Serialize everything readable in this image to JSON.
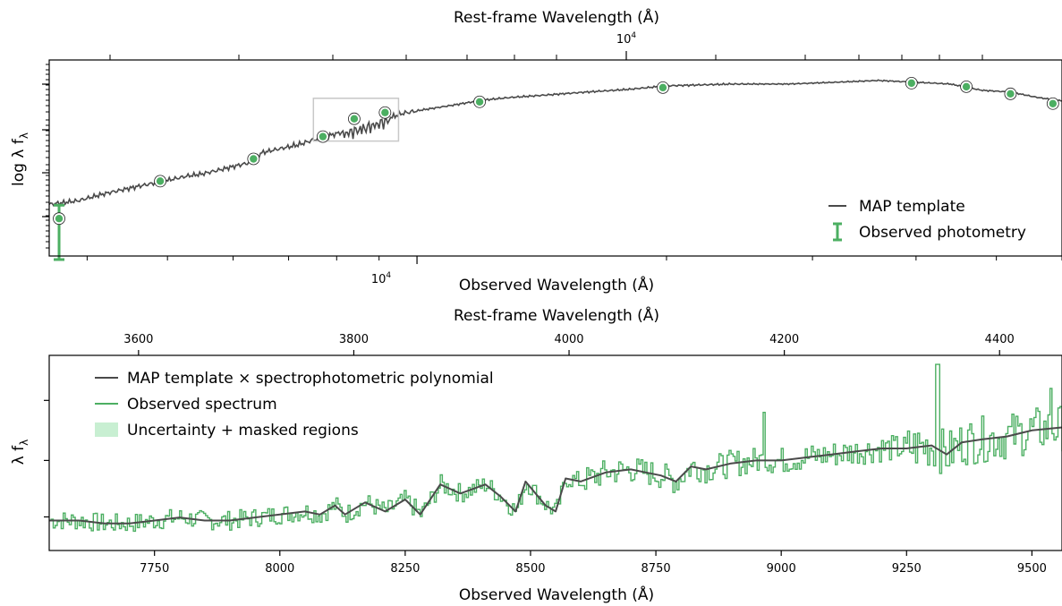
{
  "colors": {
    "template": "#4a4a4a",
    "observed": "#4caf62",
    "uncertainty_fill": "#c8efd2",
    "marker_fill": "#4caf62",
    "inset_box": "#c8c8c8"
  },
  "chart_data": [
    {
      "type": "line",
      "panel": "top",
      "xlabel": "Observed Wavelength (Å)",
      "ylabel": "log  λ f",
      "ylabel_subscript": "λ",
      "top_xlabel": "Rest-frame Wavelength (Å)",
      "x_tick_label": "10",
      "x_tick_exp": "4",
      "top_tick_label": "10",
      "top_tick_exp": "4",
      "xscale": "log",
      "yscale": "log",
      "xlim": [
        3600,
        60000
      ],
      "ylim_logf": [
        -1.3,
        0.9
      ],
      "series": [
        {
          "name": "MAP template",
          "points": [
            [
              3600,
              -0.72
            ],
            [
              3900,
              -0.68
            ],
            [
              4200,
              -0.6
            ],
            [
              4600,
              -0.52
            ],
            [
              5000,
              -0.45
            ],
            [
              5300,
              -0.4
            ],
            [
              5500,
              -0.38
            ],
            [
              5800,
              -0.33
            ],
            [
              6100,
              -0.28
            ],
            [
              6300,
              -0.25
            ],
            [
              6500,
              -0.14
            ],
            [
              6800,
              -0.1
            ],
            [
              7200,
              -0.05
            ],
            [
              7600,
              0.02
            ],
            [
              7900,
              0.06
            ],
            [
              8200,
              0.1
            ],
            [
              8500,
              0.14
            ],
            [
              8800,
              0.18
            ],
            [
              9200,
              0.24
            ],
            [
              9600,
              0.3
            ],
            [
              10000,
              0.33
            ],
            [
              11000,
              0.39
            ],
            [
              12000,
              0.45
            ],
            [
              13000,
              0.48
            ],
            [
              14000,
              0.5
            ],
            [
              16000,
              0.54
            ],
            [
              18000,
              0.57
            ],
            [
              20000,
              0.61
            ],
            [
              24000,
              0.63
            ],
            [
              28000,
              0.63
            ],
            [
              32000,
              0.65
            ],
            [
              36000,
              0.67
            ],
            [
              40000,
              0.65
            ],
            [
              44000,
              0.63
            ],
            [
              48000,
              0.56
            ],
            [
              52000,
              0.54
            ],
            [
              56000,
              0.48
            ],
            [
              60000,
              0.44
            ]
          ]
        },
        {
          "name": "Observed photometry",
          "points": [
            {
              "x": 3700,
              "y": -0.88,
              "err_low": 0.46,
              "err_high": 0.15
            },
            {
              "x": 4900,
              "y": -0.46
            },
            {
              "x": 6350,
              "y": -0.21
            },
            {
              "x": 7700,
              "y": 0.04
            },
            {
              "x": 8400,
              "y": 0.24
            },
            {
              "x": 9150,
              "y": 0.31
            },
            {
              "x": 11900,
              "y": 0.43
            },
            {
              "x": 19800,
              "y": 0.59
            },
            {
              "x": 39500,
              "y": 0.64
            },
            {
              "x": 46000,
              "y": 0.6
            },
            {
              "x": 52000,
              "y": 0.52
            },
            {
              "x": 58500,
              "y": 0.41
            }
          ]
        }
      ],
      "inset_box": {
        "x": [
          7500,
          9500
        ],
        "y_logf": [
          -0.01,
          0.47
        ]
      }
    },
    {
      "type": "line",
      "panel": "bottom",
      "xlabel": "Observed Wavelength (Å)",
      "ylabel": "λ f",
      "ylabel_subscript": "λ",
      "top_xlabel": "Rest-frame Wavelength (Å)",
      "xlim": [
        7540,
        9560
      ],
      "xticks": [
        7750,
        8000,
        8250,
        8500,
        8750,
        9000,
        9250,
        9500
      ],
      "top_xlim": [
        3517,
        4458
      ],
      "top_xticks": [
        3600,
        3800,
        4000,
        4200,
        4400
      ],
      "ylim": [
        0.7,
        1.35
      ],
      "series": [
        {
          "name": "MAP template × spectrophotometric polynomial",
          "points": [
            [
              7540,
              0.8
            ],
            [
              7600,
              0.8
            ],
            [
              7650,
              0.79
            ],
            [
              7700,
              0.79
            ],
            [
              7750,
              0.8
            ],
            [
              7800,
              0.81
            ],
            [
              7850,
              0.8
            ],
            [
              7900,
              0.8
            ],
            [
              7950,
              0.81
            ],
            [
              8000,
              0.82
            ],
            [
              8050,
              0.83
            ],
            [
              8080,
              0.82
            ],
            [
              8110,
              0.85
            ],
            [
              8130,
              0.82
            ],
            [
              8170,
              0.86
            ],
            [
              8210,
              0.83
            ],
            [
              8250,
              0.87
            ],
            [
              8280,
              0.82
            ],
            [
              8320,
              0.92
            ],
            [
              8360,
              0.89
            ],
            [
              8410,
              0.92
            ],
            [
              8440,
              0.88
            ],
            [
              8470,
              0.83
            ],
            [
              8490,
              0.93
            ],
            [
              8530,
              0.85
            ],
            [
              8550,
              0.83
            ],
            [
              8570,
              0.94
            ],
            [
              8600,
              0.93
            ],
            [
              8650,
              0.96
            ],
            [
              8700,
              0.97
            ],
            [
              8730,
              0.96
            ],
            [
              8760,
              0.95
            ],
            [
              8790,
              0.93
            ],
            [
              8820,
              0.98
            ],
            [
              8850,
              0.97
            ],
            [
              8900,
              0.99
            ],
            [
              8950,
              1.0
            ],
            [
              9000,
              1.0
            ],
            [
              9050,
              1.01
            ],
            [
              9100,
              1.02
            ],
            [
              9150,
              1.03
            ],
            [
              9200,
              1.04
            ],
            [
              9250,
              1.04
            ],
            [
              9300,
              1.05
            ],
            [
              9330,
              1.02
            ],
            [
              9360,
              1.06
            ],
            [
              9400,
              1.07
            ],
            [
              9450,
              1.08
            ],
            [
              9500,
              1.1
            ],
            [
              9560,
              1.11
            ]
          ]
        },
        {
          "name": "Observed spectrum"
        },
        {
          "name": "Uncertainty + masked regions"
        }
      ]
    }
  ]
}
